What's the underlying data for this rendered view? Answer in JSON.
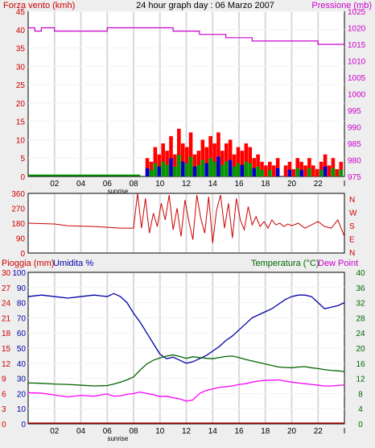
{
  "title": "24 hour graph day : 06 Marzo 2007",
  "colors": {
    "wind": "#cc0000",
    "gust": "#ff0000",
    "pressure": "#cc00cc",
    "rain": "#cc0000",
    "humidity": "#0000aa",
    "temperature": "#006600",
    "dewpoint": "#ff00ff",
    "panel_bg": "#ffffff",
    "page_bg": "#eeeeee",
    "grid": "#d9d9d9"
  },
  "x_ticks": [
    "02",
    "04",
    "06",
    "08",
    "10",
    "12",
    "14",
    "16",
    "18",
    "20",
    "22",
    "I"
  ],
  "sunrise_label": "sunrise",
  "sunrise_hour": 6.8,
  "chart_data": [
    {
      "type": "bar",
      "title": "24 hour graph day : 06 Marzo 2007",
      "left_axis": {
        "label": "Forza vento (kmh)",
        "ticks": [
          "0",
          "5",
          "10",
          "15",
          "20",
          "25",
          "30",
          "35",
          "40",
          "45"
        ],
        "range": [
          0,
          45
        ]
      },
      "right_axis": {
        "label": "Pressione (mb)",
        "ticks": [
          "975",
          "980",
          "985",
          "990",
          "995",
          "1000",
          "1005",
          "1010",
          "1015",
          "1020",
          "1025"
        ],
        "range": [
          975,
          1025
        ]
      },
      "x_range_hours": [
        0,
        24
      ],
      "series": [
        {
          "name": "Forza vento (kmh)",
          "axis": "left",
          "style": "bars",
          "x": [
            0,
            6,
            8.5,
            8.9,
            9.2,
            9.5,
            9.8,
            10.1,
            10.4,
            10.7,
            11,
            11.3,
            11.6,
            11.9,
            12.2,
            12.5,
            12.8,
            13.1,
            13.4,
            13.7,
            14,
            14.3,
            14.6,
            14.9,
            15.2,
            15.5,
            15.8,
            16.1,
            16.4,
            16.7,
            17,
            17.3,
            17.6,
            17.9,
            18.2,
            18.5,
            18.8,
            19.1,
            19.4,
            19.7,
            20,
            20.3,
            20.6,
            20.9,
            21.2,
            21.5,
            21.8,
            22.1,
            22.4,
            22.7,
            23,
            23.3,
            23.6
          ],
          "values": [
            0,
            0,
            0,
            5,
            4,
            8,
            6,
            9,
            7,
            11,
            6,
            13,
            9,
            8,
            12,
            6,
            7,
            10,
            8,
            11,
            9,
            12,
            7,
            9,
            10,
            6,
            8,
            7,
            9,
            8,
            5,
            6,
            4,
            3,
            4,
            3,
            5,
            0,
            3,
            4,
            2,
            5,
            4,
            3,
            5,
            3,
            2,
            4,
            6,
            3,
            5,
            2,
            4
          ]
        },
        {
          "name": "Pressione (mb)",
          "axis": "right",
          "style": "step",
          "x": [
            0,
            0.5,
            1,
            2,
            3,
            5,
            6,
            7,
            8,
            9,
            10,
            11,
            12,
            13,
            14,
            15,
            16,
            17,
            18,
            19,
            20,
            21,
            22,
            23,
            24
          ],
          "values": [
            1020,
            1019,
            1020,
            1019,
            1019,
            1019,
            1020,
            1020,
            1020,
            1020,
            1020,
            1019,
            1019,
            1018,
            1018,
            1017,
            1017,
            1016,
            1016,
            1016,
            1016,
            1016,
            1015,
            1015,
            1015
          ]
        }
      ]
    },
    {
      "type": "line",
      "left_axis": {
        "ticks": [
          "0",
          "90",
          "180",
          "270",
          "360"
        ],
        "range": [
          0,
          360
        ]
      },
      "right_axis": {
        "labels": [
          "N",
          "W",
          "S",
          "E",
          "N"
        ]
      },
      "x_range_hours": [
        0,
        24
      ],
      "series": [
        {
          "name": "Wind direction",
          "x": [
            0,
            2,
            3,
            5,
            6,
            7,
            8,
            8.3,
            8.6,
            8.9,
            9.2,
            9.5,
            9.8,
            10.1,
            10.4,
            10.7,
            11,
            11.3,
            11.6,
            11.9,
            12.2,
            12.5,
            12.8,
            13.1,
            13.4,
            13.7,
            14,
            14.3,
            14.6,
            14.9,
            15.2,
            15.5,
            15.8,
            16.1,
            16.4,
            16.7,
            17,
            17.3,
            17.6,
            17.9,
            18.2,
            18.5,
            18.8,
            19.1,
            19.4,
            19.7,
            20,
            20.5,
            21,
            21.5,
            22,
            22.5,
            23,
            23.5,
            24
          ],
          "values": [
            180,
            175,
            165,
            160,
            155,
            150,
            150,
            360,
            150,
            330,
            120,
            240,
            160,
            300,
            200,
            350,
            140,
            270,
            100,
            320,
            190,
            80,
            350,
            210,
            120,
            340,
            60,
            260,
            350,
            150,
            300,
            90,
            330,
            200,
            140,
            280,
            170,
            220,
            160,
            190,
            150,
            200,
            170,
            180,
            160,
            175,
            165,
            180,
            150,
            170,
            190,
            160,
            150,
            200,
            100
          ]
        }
      ]
    },
    {
      "type": "line",
      "labels": {
        "rain": "Pioggia (mm)",
        "humidity": "Umidita %",
        "temperature": "Temperatura (°C)",
        "dewpoint": "Dew Point"
      },
      "rain_axis": {
        "ticks": [
          "0",
          "3",
          "6",
          "9",
          "12",
          "15",
          "18",
          "21",
          "24",
          "27",
          "30"
        ],
        "range": [
          0,
          30
        ]
      },
      "humidity_axis": {
        "ticks": [
          "0",
          "10",
          "20",
          "30",
          "40",
          "50",
          "60",
          "70",
          "80",
          "90",
          "100"
        ],
        "range": [
          0,
          100
        ]
      },
      "temperature_axis": {
        "ticks": [
          "0",
          "4",
          "8",
          "12",
          "16",
          "20",
          "24",
          "28",
          "32",
          "36",
          "40"
        ],
        "range": [
          0,
          40
        ]
      },
      "x_range_hours": [
        0,
        24
      ],
      "series": [
        {
          "name": "Pioggia (mm)",
          "axis": "rain",
          "x": [
            0,
            24
          ],
          "values": [
            0,
            0
          ]
        },
        {
          "name": "Umidita %",
          "axis": "humidity",
          "x": [
            0,
            1,
            2,
            3,
            4,
            5,
            6,
            6.5,
            7,
            7.5,
            8,
            8.5,
            9,
            9.5,
            10,
            10.5,
            11,
            11.5,
            12,
            12.5,
            13,
            13.5,
            14,
            14.5,
            15,
            15.5,
            16,
            16.5,
            17,
            17.5,
            18,
            18.5,
            19,
            19.5,
            20,
            20.5,
            21,
            21.5,
            22,
            22.5,
            23,
            23.5,
            24
          ],
          "values": [
            84,
            85,
            84,
            83,
            84,
            85,
            84,
            86,
            84,
            80,
            73,
            67,
            60,
            53,
            46,
            43,
            44,
            42,
            40,
            41,
            43,
            45,
            48,
            51,
            55,
            58,
            62,
            66,
            70,
            72,
            74,
            76,
            79,
            82,
            84,
            85,
            85,
            84,
            80,
            76,
            77,
            78,
            80
          ]
        },
        {
          "name": "Temperatura (°C)",
          "axis": "temperature",
          "x": [
            0,
            1,
            2,
            3,
            4,
            5,
            6,
            6.5,
            7,
            7.5,
            8,
            8.5,
            9,
            9.5,
            10,
            10.5,
            11,
            11.5,
            12,
            12.5,
            13,
            13.5,
            14,
            14.5,
            15,
            15.5,
            16,
            16.5,
            17,
            17.5,
            18,
            18.5,
            19,
            19.5,
            20,
            20.5,
            21,
            21.5,
            22,
            22.5,
            23,
            23.5,
            24
          ],
          "values": [
            10.8,
            10.7,
            10.5,
            10.4,
            10.2,
            10.0,
            10.1,
            10.5,
            11,
            11.6,
            12.4,
            14.2,
            15.8,
            16.8,
            17.4,
            17.9,
            18.2,
            17.8,
            17.3,
            17.7,
            17.5,
            17.3,
            17.2,
            17.5,
            17.8,
            17.9,
            17.5,
            17.0,
            16.6,
            16.2,
            15.8,
            15.4,
            15.0,
            14.9,
            14.8,
            15.0,
            15.1,
            14.8,
            14.6,
            14.3,
            14.1,
            14.0,
            13.8
          ]
        },
        {
          "name": "Dew Point",
          "axis": "temperature",
          "x": [
            0,
            1,
            2,
            3,
            4,
            5,
            6,
            6.5,
            7,
            7.5,
            8,
            8.5,
            9,
            9.5,
            10,
            10.5,
            11,
            11.5,
            12,
            12.5,
            13,
            13.5,
            14,
            14.5,
            15,
            15.5,
            16,
            16.5,
            17,
            17.5,
            18,
            18.5,
            19,
            19.5,
            20,
            20.5,
            21,
            21.5,
            22,
            22.5,
            23,
            23.5,
            24
          ],
          "values": [
            8.2,
            8.1,
            7.6,
            7.1,
            7.5,
            7.3,
            7.9,
            7.3,
            7.4,
            7.8,
            8.0,
            8.4,
            8.0,
            7.7,
            7.2,
            7.3,
            6.9,
            6.6,
            6.0,
            6.3,
            8.0,
            8.8,
            9.2,
            9.6,
            9.8,
            10.0,
            10.4,
            10.6,
            11.0,
            11.3,
            11.5,
            11.5,
            11.6,
            11.3,
            11.0,
            10.8,
            10.6,
            10.4,
            10.2,
            10.0,
            10.0,
            10.1,
            10.3
          ]
        }
      ]
    }
  ]
}
